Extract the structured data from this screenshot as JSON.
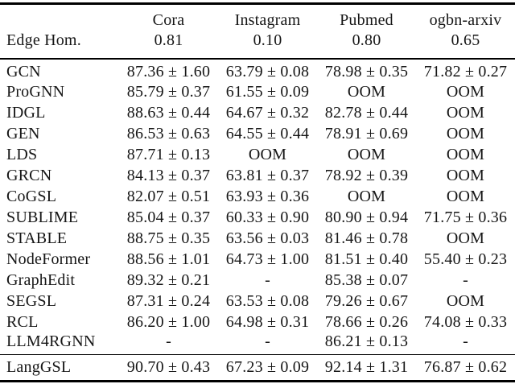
{
  "table": {
    "header": {
      "datasets": [
        "Cora",
        "Instagram",
        "Pubmed",
        "ogbn-arxiv"
      ],
      "edge_hom_label": "Edge Hom.",
      "edge_hom_values": [
        "0.81",
        "0.10",
        "0.80",
        "0.65"
      ]
    },
    "rows": [
      {
        "method": "GCN",
        "values": [
          "87.36 ± 1.60",
          "63.79 ± 0.08",
          "78.98 ± 0.35",
          "71.82 ± 0.27"
        ]
      },
      {
        "method": "ProGNN",
        "values": [
          "85.79 ± 0.37",
          "61.55 ± 0.09",
          "OOM",
          "OOM"
        ]
      },
      {
        "method": "IDGL",
        "values": [
          "88.63 ± 0.44",
          "64.67 ± 0.32",
          "82.78 ± 0.44",
          "OOM"
        ]
      },
      {
        "method": "GEN",
        "values": [
          "86.53 ± 0.63",
          "64.55 ± 0.44",
          "78.91 ± 0.69",
          "OOM"
        ]
      },
      {
        "method": "LDS",
        "values": [
          "87.71 ± 0.13",
          "OOM",
          "OOM",
          "OOM"
        ]
      },
      {
        "method": "GRCN",
        "values": [
          "84.13 ± 0.37",
          "63.81 ± 0.37",
          "78.92 ± 0.39",
          "OOM"
        ]
      },
      {
        "method": "CoGSL",
        "values": [
          "82.07 ± 0.51",
          "63.93 ± 0.36",
          "OOM",
          "OOM"
        ]
      },
      {
        "method": "SUBLIME",
        "values": [
          "85.04 ± 0.37",
          "60.33 ± 0.90",
          "80.90 ± 0.94",
          "71.75 ± 0.36"
        ]
      },
      {
        "method": "STABLE",
        "values": [
          "88.75 ± 0.35",
          "63.56 ± 0.03",
          "81.46 ± 0.78",
          "OOM"
        ]
      },
      {
        "method": "NodeFormer",
        "values": [
          "88.56 ± 1.01",
          "64.73 ± 1.00",
          "81.51 ± 0.40",
          "55.40 ± 0.23"
        ]
      },
      {
        "method": "GraphEdit",
        "values": [
          "89.32 ± 0.21",
          "-",
          "85.38 ± 0.07",
          "-"
        ]
      },
      {
        "method": "SEGSL",
        "values": [
          "87.31 ± 0.24",
          "63.53 ± 0.08",
          "79.26 ± 0.67",
          "OOM"
        ]
      },
      {
        "method": "RCL",
        "values": [
          "86.20 ± 1.00",
          "64.98 ± 0.31",
          "78.66 ± 0.26",
          "74.08 ± 0.33"
        ]
      },
      {
        "method": "LLM4RGNN",
        "values": [
          "-",
          "-",
          "86.21 ± 0.13",
          "-"
        ]
      }
    ],
    "final_row": {
      "method": "LangGSL",
      "values": [
        "90.70 ± 0.43",
        "67.23 ± 0.09",
        "92.14 ± 1.31",
        "76.87 ± 0.62"
      ]
    }
  },
  "colors": {
    "text": "#161616",
    "rule": "#000000",
    "background": "#ffffff"
  }
}
